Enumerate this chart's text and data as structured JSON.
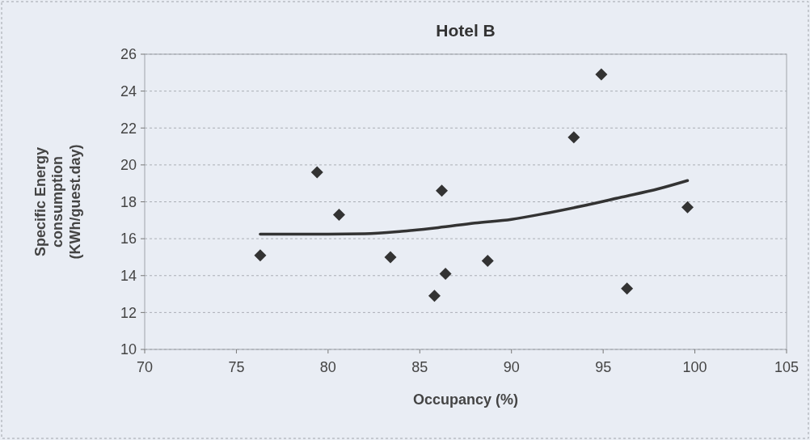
{
  "chart_data": {
    "type": "scatter",
    "title": "Hotel B",
    "xlabel": "Occupancy (%)",
    "ylabel": "Specific Energy consumption (KWh/guest.day)",
    "xlim": [
      70,
      105
    ],
    "xticks": [
      70,
      75,
      80,
      85,
      90,
      95,
      100,
      105
    ],
    "ylim": [
      10,
      26
    ],
    "yticks": [
      10,
      12,
      14,
      16,
      18,
      20,
      22,
      24,
      26
    ],
    "grid": "y",
    "marker": "diamond",
    "series": [
      {
        "type": "scatter",
        "color": "#333333",
        "x": [
          76.3,
          79.4,
          80.6,
          83.4,
          86.2,
          86.4,
          85.8,
          88.7,
          93.4,
          94.9,
          96.3,
          99.6
        ],
        "values": [
          15.1,
          19.6,
          17.3,
          15.0,
          18.6,
          14.1,
          12.9,
          14.8,
          21.5,
          24.9,
          13.3,
          17.7
        ]
      },
      {
        "type": "line",
        "color": "#333333",
        "marker": "none",
        "x": [
          76.3,
          80,
          82,
          84,
          86,
          88,
          90,
          92,
          94,
          96,
          98,
          99.6
        ],
        "values": [
          16.25,
          16.25,
          16.27,
          16.4,
          16.6,
          16.85,
          17.05,
          17.4,
          17.8,
          18.25,
          18.7,
          19.15
        ]
      }
    ]
  }
}
